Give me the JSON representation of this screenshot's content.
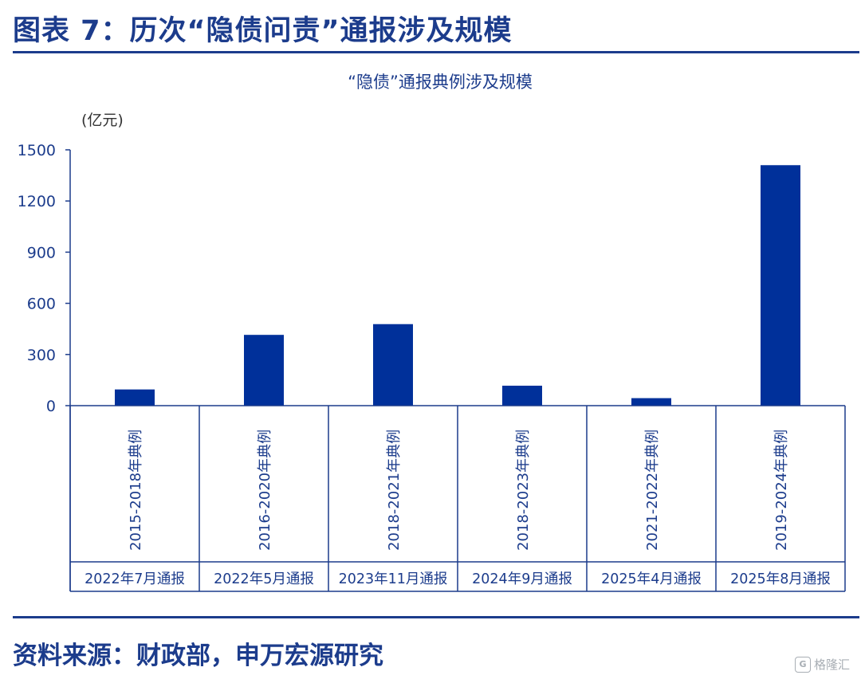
{
  "figure": {
    "title": "图表 7：历次“隐债问责”通报涉及规模",
    "source": "资料来源：财政部，申万宏源研究",
    "watermark": "格隆汇",
    "accent_color": "#1c3c8c",
    "bar_color": "#00309a"
  },
  "chart_data": {
    "type": "bar",
    "title": "“隐债”通报典例涉及规模",
    "ylabel": "(亿元)",
    "ylim": [
      0,
      1500
    ],
    "yticks": [
      0,
      300,
      600,
      900,
      1200,
      1500
    ],
    "categories": [
      "2015-2018年典例",
      "2016-2020年典例",
      "2018-2021年典例",
      "2018-2023年典例",
      "2021-2022年典例",
      "2019-2024年典例"
    ],
    "group_labels": [
      "2022年7月通报",
      "2022年5月通报",
      "2023年11月通报",
      "2024年9月通报",
      "2025年4月通报",
      "2025年8月通报"
    ],
    "values": [
      95,
      415,
      478,
      117,
      44,
      1410
    ],
    "grid": false,
    "legend": "none"
  }
}
